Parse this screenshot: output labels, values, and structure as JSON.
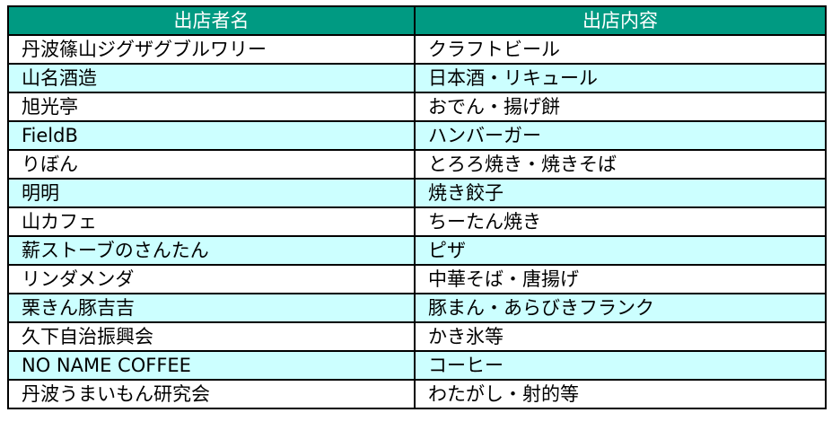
{
  "colors": {
    "header_bg": "#009a82",
    "header_text": "#ffffff",
    "alt_row_bg": "#ccffff"
  },
  "table": {
    "headers": [
      "出店者名",
      "出店内容"
    ],
    "rows": [
      [
        "丹波篠山ジグザグブルワリー",
        "クラフトビール"
      ],
      [
        "山名酒造",
        "日本酒・リキュール"
      ],
      [
        "旭光亭",
        "おでん・揚げ餅"
      ],
      [
        "FieldB",
        "ハンバーガー"
      ],
      [
        "りぼん",
        "とろろ焼き・焼きそば"
      ],
      [
        "明明",
        "焼き餃子"
      ],
      [
        "山カフェ",
        "ちーたん焼き"
      ],
      [
        "薪ストーブのさんたん",
        "ピザ"
      ],
      [
        "リンダメンダ",
        "中華そば・唐揚げ"
      ],
      [
        "栗きん豚吉吉",
        "豚まん・あらびきフランク"
      ],
      [
        "久下自治振興会",
        "かき氷等"
      ],
      [
        "NO NAME COFFEE",
        "コーヒー"
      ],
      [
        "丹波うまいもん研究会",
        "わたがし・射的等"
      ]
    ]
  }
}
